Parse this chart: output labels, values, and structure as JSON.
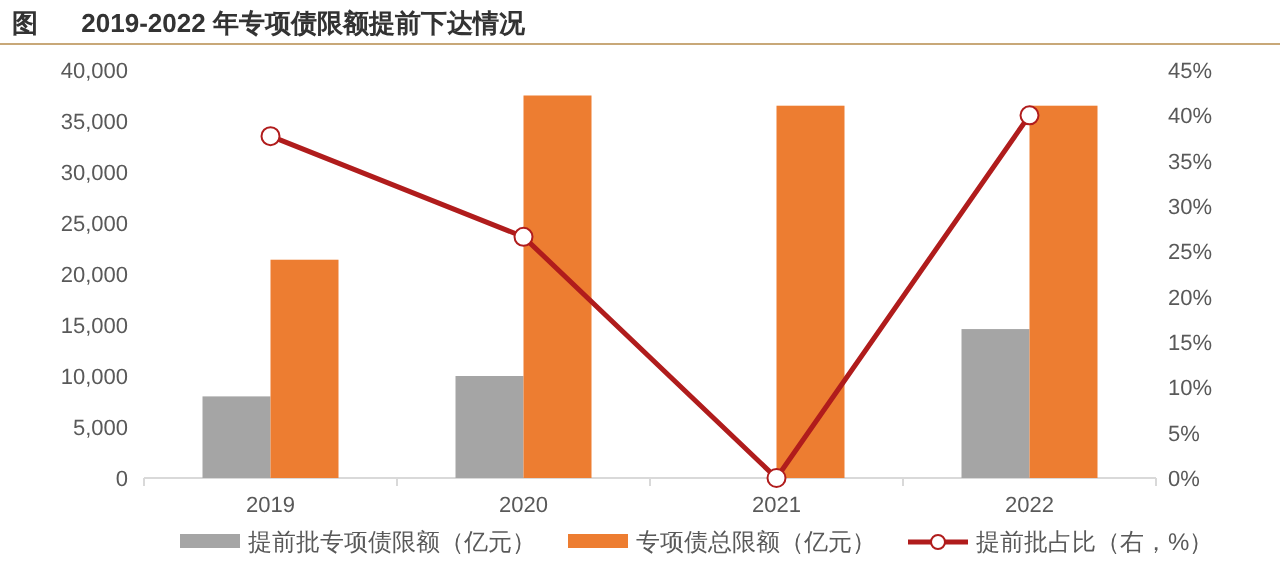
{
  "chart_data": {
    "type": "bar",
    "title": "图      2019-2022 年专项债限额提前下达情况",
    "categories": [
      "2019",
      "2020",
      "2021",
      "2022"
    ],
    "series": [
      {
        "name": "提前批专项债限额（亿元）",
        "color": "#a5a5a5",
        "values": [
          8000,
          10000,
          null,
          14600
        ]
      },
      {
        "name": "专项债总限额（亿元）",
        "color": "#ed7d31",
        "values": [
          21400,
          37500,
          36500,
          36500
        ]
      },
      {
        "name": "提前批占比（右，%）",
        "type": "line",
        "axis": "y2",
        "color": "#b01c1c",
        "marker": "circle",
        "values": [
          37.7,
          26.6,
          0,
          40.0
        ]
      }
    ],
    "ylim": [
      0,
      40000
    ],
    "yticks": [
      {
        "value": 0,
        "label": "0"
      },
      {
        "value": 5000,
        "label": "5,000"
      },
      {
        "value": 10000,
        "label": "10,000"
      },
      {
        "value": 15000,
        "label": "15,000"
      },
      {
        "value": 20000,
        "label": "20,000"
      },
      {
        "value": 25000,
        "label": "25,000"
      },
      {
        "value": 30000,
        "label": "30,000"
      },
      {
        "value": 35000,
        "label": "35,000"
      },
      {
        "value": 40000,
        "label": "40,000"
      }
    ],
    "y2lim": [
      0,
      45
    ],
    "y2ticks": [
      {
        "value": 0,
        "label": "0%"
      },
      {
        "value": 5,
        "label": "5%"
      },
      {
        "value": 10,
        "label": "10%"
      },
      {
        "value": 15,
        "label": "15%"
      },
      {
        "value": 20,
        "label": "20%"
      },
      {
        "value": 25,
        "label": "25%"
      },
      {
        "value": 30,
        "label": "30%"
      },
      {
        "value": 35,
        "label": "35%"
      },
      {
        "value": 40,
        "label": "40%"
      },
      {
        "value": 45,
        "label": "45%"
      }
    ],
    "grid": false,
    "legend": "bottom"
  }
}
